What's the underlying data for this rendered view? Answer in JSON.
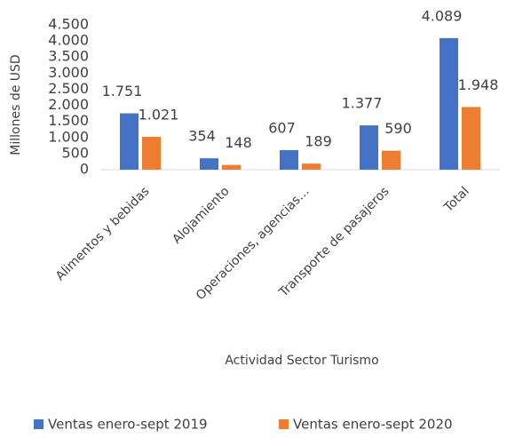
{
  "chart_data": {
    "type": "bar",
    "x_label": "Actividad Sector Turismo",
    "y_label": "Millones de USD",
    "categories": [
      "Alimentos y bebidas",
      "Alojamiento",
      "Operaciones, agencias…",
      "Transporte de pasajeros",
      "Total"
    ],
    "series": [
      {
        "name": "Ventas enero-sept 2019",
        "color": "#4472c4",
        "values": [
          1751,
          354,
          607,
          1377,
          4089
        ],
        "value_labels": [
          "1.751",
          "354",
          "607",
          "1.377",
          "4.089"
        ]
      },
      {
        "name": "Ventas enero-sept 2020",
        "color": "#ed7d31",
        "values": [
          1021,
          148,
          189,
          590,
          1948
        ],
        "value_labels": [
          "1.021",
          "148",
          "189",
          "590",
          "1.948"
        ]
      }
    ],
    "ylim": [
      0,
      4500
    ],
    "yticks": [
      0,
      500,
      {
        "value": 1000,
        "label": "1.000"
      },
      {
        "value": 1500,
        "label": "1.500"
      },
      {
        "value": 2000,
        "label": "2.000"
      },
      {
        "value": 2500,
        "label": "2.500"
      },
      {
        "value": 3000,
        "label": "3.000"
      },
      {
        "value": 3500,
        "label": "3.500"
      },
      {
        "value": 4000,
        "label": "4.000"
      },
      {
        "value": 4500,
        "label": "4.500"
      }
    ],
    "grid": false,
    "legend": "bottom"
  }
}
